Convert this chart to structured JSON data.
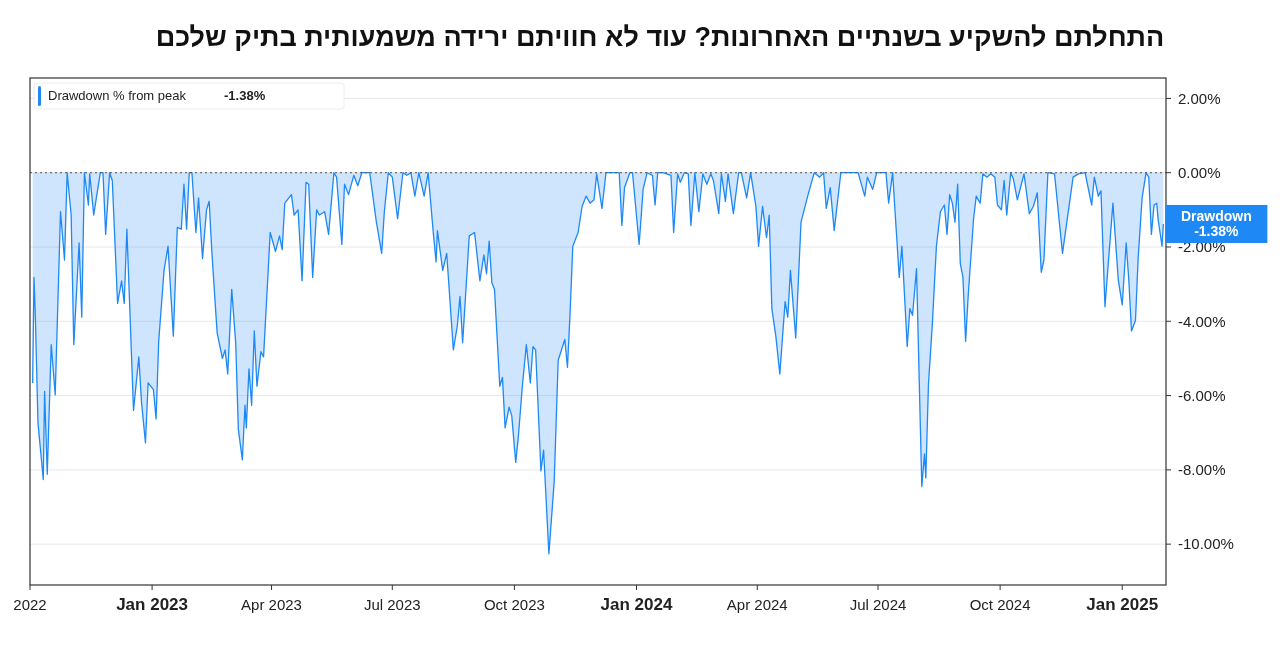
{
  "chart_data": {
    "type": "area",
    "title": "התחלתם להשקיע בשנתיים האחרונות? עוד לא חוויתם ירידה משמעותית בתיק שלכם",
    "xlim": [
      "2022-10-01",
      "2025-02-03"
    ],
    "xticks": [
      {
        "value": "2022-10-01",
        "label": "2022"
      },
      {
        "value": "2023-01-01",
        "label": "Jan 2023"
      },
      {
        "value": "2023-04-01",
        "label": "Apr 2023"
      },
      {
        "value": "2023-07-01",
        "label": "Jul 2023"
      },
      {
        "value": "2023-10-01",
        "label": "Oct 2023"
      },
      {
        "value": "2024-01-01",
        "label": "Jan 2024"
      },
      {
        "value": "2024-04-01",
        "label": "Apr 2024"
      },
      {
        "value": "2024-07-01",
        "label": "Jul 2024"
      },
      {
        "value": "2024-10-01",
        "label": "Oct 2024"
      },
      {
        "value": "2025-01-01",
        "label": "Jan 2025"
      }
    ],
    "ylim": [
      -11.1,
      2.55
    ],
    "yticks": [
      {
        "value": 2,
        "label": "2.00%"
      },
      {
        "value": 0,
        "label": "0.00%"
      },
      {
        "value": -2,
        "label": "-2.00%"
      },
      {
        "value": -4,
        "label": "-4.00%"
      },
      {
        "value": -6,
        "label": "-6.00%"
      },
      {
        "value": -8,
        "label": "-8.00%"
      },
      {
        "value": -10,
        "label": "-10.00%"
      }
    ],
    "grid": "y",
    "legend": "top left",
    "line_style": "solid",
    "ref_lines": [
      {
        "axis": "y",
        "value": 0,
        "line_style": "dotted",
        "color": "#555555"
      }
    ],
    "annotations": [
      "-1.38%",
      {
        "text": "Drawdown -1.38%",
        "x": "2025-02-01",
        "y": -1.38
      }
    ],
    "series": [
      {
        "name": "Drawdown % from peak",
        "color": "#1e88f5",
        "x": [
          "2022-10-03",
          "2022-10-04",
          "2022-10-05",
          "2022-10-07",
          "2022-10-11",
          "2022-10-12",
          "2022-10-14",
          "2022-10-17",
          "2022-10-20",
          "2022-10-24",
          "2022-10-27",
          "2022-10-29",
          "2022-11-01",
          "2022-11-03",
          "2022-11-07",
          "2022-11-09",
          "2022-11-11",
          "2022-11-14",
          "2022-11-15",
          "2022-11-18",
          "2022-11-20",
          "2022-11-23",
          "2022-11-25",
          "2022-11-27",
          "2022-11-30",
          "2022-12-02",
          "2022-12-06",
          "2022-12-09",
          "2022-12-11",
          "2022-12-13",
          "2022-12-18",
          "2022-12-22",
          "2022-12-24",
          "2022-12-27",
          "2022-12-29",
          "2023-01-02",
          "2023-01-04",
          "2023-01-06",
          "2023-01-10",
          "2023-01-13",
          "2023-01-17",
          "2023-01-20",
          "2023-01-23",
          "2023-01-25",
          "2023-01-27",
          "2023-01-29",
          "2023-01-31",
          "2023-02-03",
          "2023-02-05",
          "2023-02-08",
          "2023-02-11",
          "2023-02-13",
          "2023-02-15",
          "2023-02-19",
          "2023-02-23",
          "2023-02-25",
          "2023-02-27",
          "2023-03-02",
          "2023-03-05",
          "2023-03-07",
          "2023-03-10",
          "2023-03-12",
          "2023-03-13",
          "2023-03-15",
          "2023-03-17",
          "2023-03-19",
          "2023-03-21",
          "2023-03-24",
          "2023-03-26",
          "2023-03-31",
          "2023-04-04",
          "2023-04-07",
          "2023-04-09",
          "2023-04-11",
          "2023-04-16",
          "2023-04-18",
          "2023-04-21",
          "2023-04-24",
          "2023-04-27",
          "2023-04-29",
          "2023-05-02",
          "2023-05-05",
          "2023-05-07",
          "2023-05-11",
          "2023-05-14",
          "2023-05-18",
          "2023-05-20",
          "2023-05-24",
          "2023-05-26",
          "2023-05-29",
          "2023-06-02",
          "2023-06-05",
          "2023-06-08",
          "2023-06-14",
          "2023-06-19",
          "2023-06-23",
          "2023-06-25",
          "2023-06-28",
          "2023-07-01",
          "2023-07-05",
          "2023-07-09",
          "2023-07-12",
          "2023-07-15",
          "2023-07-18",
          "2023-07-21",
          "2023-07-25",
          "2023-07-28",
          "2023-08-01",
          "2023-08-03",
          "2023-08-04",
          "2023-08-08",
          "2023-08-11",
          "2023-08-16",
          "2023-08-19",
          "2023-08-21",
          "2023-08-23",
          "2023-08-28",
          "2023-09-01",
          "2023-09-05",
          "2023-09-08",
          "2023-09-10",
          "2023-09-12",
          "2023-09-14",
          "2023-09-16",
          "2023-09-20",
          "2023-09-22",
          "2023-09-24",
          "2023-09-27",
          "2023-09-29",
          "2023-10-02",
          "2023-10-04",
          "2023-10-07",
          "2023-10-10",
          "2023-10-13",
          "2023-10-15",
          "2023-10-17",
          "2023-10-21",
          "2023-10-23",
          "2023-10-27",
          "2023-10-31",
          "2023-11-03",
          "2023-11-08",
          "2023-11-10",
          "2023-11-12",
          "2023-11-14",
          "2023-11-18",
          "2023-11-21",
          "2023-11-24",
          "2023-11-27",
          "2023-11-30",
          "2023-12-02",
          "2023-12-06",
          "2023-12-09",
          "2023-12-19",
          "2023-12-21",
          "2023-12-23",
          "2023-12-27",
          "2023-12-29",
          "2024-01-03",
          "2024-01-06",
          "2024-01-09",
          "2024-01-13",
          "2024-01-15",
          "2024-01-17",
          "2024-01-21",
          "2024-01-27",
          "2024-01-29",
          "2024-02-01",
          "2024-02-03",
          "2024-02-06",
          "2024-02-09",
          "2024-02-11",
          "2024-02-14",
          "2024-02-17",
          "2024-02-20",
          "2024-02-23",
          "2024-02-26",
          "2024-02-28",
          "2024-03-03",
          "2024-03-05",
          "2024-03-08",
          "2024-03-10",
          "2024-03-14",
          "2024-03-18",
          "2024-03-20",
          "2024-03-24",
          "2024-03-27",
          "2024-03-31",
          "2024-04-02",
          "2024-04-05",
          "2024-04-08",
          "2024-04-10",
          "2024-04-12",
          "2024-04-15",
          "2024-04-18",
          "2024-04-22",
          "2024-04-24",
          "2024-04-26",
          "2024-04-30",
          "2024-05-04",
          "2024-05-09",
          "2024-05-13",
          "2024-05-14",
          "2024-05-18",
          "2024-05-21",
          "2024-05-23",
          "2024-05-26",
          "2024-05-29",
          "2024-06-03",
          "2024-06-10",
          "2024-06-16",
          "2024-06-21",
          "2024-06-23",
          "2024-06-27",
          "2024-06-30",
          "2024-07-07",
          "2024-07-09",
          "2024-07-12",
          "2024-07-14",
          "2024-07-17",
          "2024-07-19",
          "2024-07-23",
          "2024-07-25",
          "2024-07-27",
          "2024-07-30",
          "2024-08-03",
          "2024-08-05",
          "2024-08-06",
          "2024-08-08",
          "2024-08-11",
          "2024-08-14",
          "2024-08-17",
          "2024-08-20",
          "2024-08-22",
          "2024-08-24",
          "2024-08-26",
          "2024-08-28",
          "2024-08-30",
          "2024-09-01",
          "2024-09-03",
          "2024-09-05",
          "2024-09-07",
          "2024-09-11",
          "2024-09-13",
          "2024-09-16",
          "2024-09-18",
          "2024-09-21",
          "2024-09-24",
          "2024-09-27",
          "2024-09-29",
          "2024-10-02",
          "2024-10-04",
          "2024-10-06",
          "2024-10-09",
          "2024-10-11",
          "2024-10-14",
          "2024-10-17",
          "2024-10-19",
          "2024-10-23",
          "2024-10-26",
          "2024-10-29",
          "2024-11-01",
          "2024-11-03",
          "2024-11-06",
          "2024-11-11",
          "2024-11-17",
          "2024-11-21",
          "2024-11-25",
          "2024-11-29",
          "2024-12-04",
          "2024-12-09",
          "2024-12-11",
          "2024-12-14",
          "2024-12-16",
          "2024-12-19",
          "2024-12-25",
          "2024-12-29",
          "2025-01-01",
          "2025-01-04",
          "2025-01-06",
          "2025-01-08",
          "2025-01-11",
          "2025-01-13",
          "2025-01-16",
          "2025-01-19",
          "2025-01-21",
          "2025-01-23",
          "2025-01-25",
          "2025-01-27",
          "2025-01-28",
          "2025-01-31",
          "2025-02-01"
        ],
        "values": [
          -5.66,
          -2.82,
          -3.84,
          -6.73,
          -8.26,
          -5.89,
          -8.12,
          -4.63,
          -5.98,
          -1.05,
          -2.35,
          0,
          -1.14,
          -4.63,
          -1.89,
          -3.89,
          0,
          -0.87,
          -0.03,
          -1.14,
          -0.68,
          0,
          0,
          -1.66,
          0,
          -0.21,
          -3.52,
          -2.91,
          -3.52,
          -1.52,
          -6.4,
          -4.96,
          -6.17,
          -7.27,
          -5.66,
          -5.84,
          -6.63,
          -4.53,
          -2.63,
          -1.98,
          -4.4,
          -1.47,
          -1.52,
          -0.31,
          -1.52,
          0,
          0,
          -1.61,
          -0.68,
          -2.31,
          -1.0,
          -0.77,
          -2.12,
          -4.31,
          -5.0,
          -4.77,
          -5.42,
          -3.14,
          -4.58,
          -6.91,
          -7.73,
          -6.26,
          -6.87,
          -5.28,
          -6.26,
          -4.26,
          -5.75,
          -4.82,
          -4.96,
          -1.61,
          -2.12,
          -1.7,
          -2.07,
          -0.82,
          -0.59,
          -1.14,
          -1.0,
          -2.91,
          -0.26,
          -0.31,
          -2.82,
          -1.0,
          -1.14,
          -1.05,
          -1.66,
          0,
          -0.12,
          -1.93,
          -0.31,
          -0.59,
          -0.07,
          -0.35,
          0,
          0,
          -1.33,
          -2.17,
          -1.05,
          0,
          -0.12,
          -1.24,
          0,
          -0.07,
          0,
          -0.63,
          0,
          -0.63,
          0,
          -1.66,
          -2.4,
          -1.56,
          -2.63,
          -2.17,
          -4.77,
          -4.12,
          -3.33,
          -4.58,
          -1.7,
          -1.61,
          -2.91,
          -2.21,
          -2.72,
          -1.84,
          -2.96,
          -3.14,
          -5.75,
          -5.51,
          -6.87,
          -6.31,
          -6.54,
          -7.8,
          -7.1,
          -5.75,
          -4.63,
          -5.66,
          -4.68,
          -4.77,
          -8.03,
          -7.47,
          -10.26,
          -8.31,
          -5.05,
          -4.49,
          -5.24,
          -3.75,
          -1.98,
          -1.61,
          -0.91,
          -0.63,
          -0.82,
          -0.73,
          -0.03,
          -0.96,
          0,
          0,
          -1.42,
          -0.4,
          0,
          0,
          -1.93,
          -0.45,
          0,
          -0.07,
          -0.87,
          0,
          0,
          -0.07,
          -1.61,
          -0.03,
          -0.26,
          0,
          -0.03,
          -1.42,
          0,
          -1.05,
          -0.03,
          -0.31,
          -0.03,
          -0.21,
          -1.1,
          -0.03,
          -0.77,
          -0.03,
          -1.1,
          0,
          0,
          -0.68,
          0,
          -0.91,
          -1.98,
          -0.91,
          -1.75,
          -1.14,
          -3.66,
          -4.4,
          -5.42,
          -3.47,
          -3.89,
          -2.63,
          -4.45,
          -1.33,
          -0.63,
          -0.12,
          0,
          -0.12,
          0,
          -0.96,
          -0.4,
          -1.56,
          0,
          0,
          0,
          -0.63,
          -0.12,
          -0.45,
          0,
          0,
          -0.82,
          0,
          -1.14,
          -2.82,
          -1.98,
          -4.68,
          -3.66,
          -3.84,
          -2.58,
          -8.45,
          -7.57,
          -8.22,
          -5.7,
          -4.03,
          -1.98,
          -1.05,
          -0.87,
          -1.66,
          -0.59,
          -0.82,
          -1.33,
          -0.31,
          -2.45,
          -2.82,
          -4.54,
          -3.28,
          -1.24,
          -0.63,
          -0.82,
          -0.03,
          -0.12,
          -0.03,
          -0.12,
          -0.87,
          -1.0,
          -0.21,
          -1.14,
          0,
          -0.17,
          -0.73,
          -0.31,
          -0.03,
          -1.1,
          -0.91,
          -0.54,
          -2.68,
          -2.35,
          0,
          -0.03,
          -2.17,
          -1.14,
          -0.12,
          -0.03,
          0,
          -0.87,
          -0.12,
          -0.63,
          -0.49,
          -3.61,
          -0.82,
          -2.87,
          -3.56,
          -1.89,
          -2.91,
          -4.26,
          -3.98,
          -2.31,
          -0.68,
          0,
          -0.12,
          -1.66,
          -0.87,
          -0.82,
          -1.24,
          -1.98,
          -1.38
        ]
      }
    ]
  }
}
